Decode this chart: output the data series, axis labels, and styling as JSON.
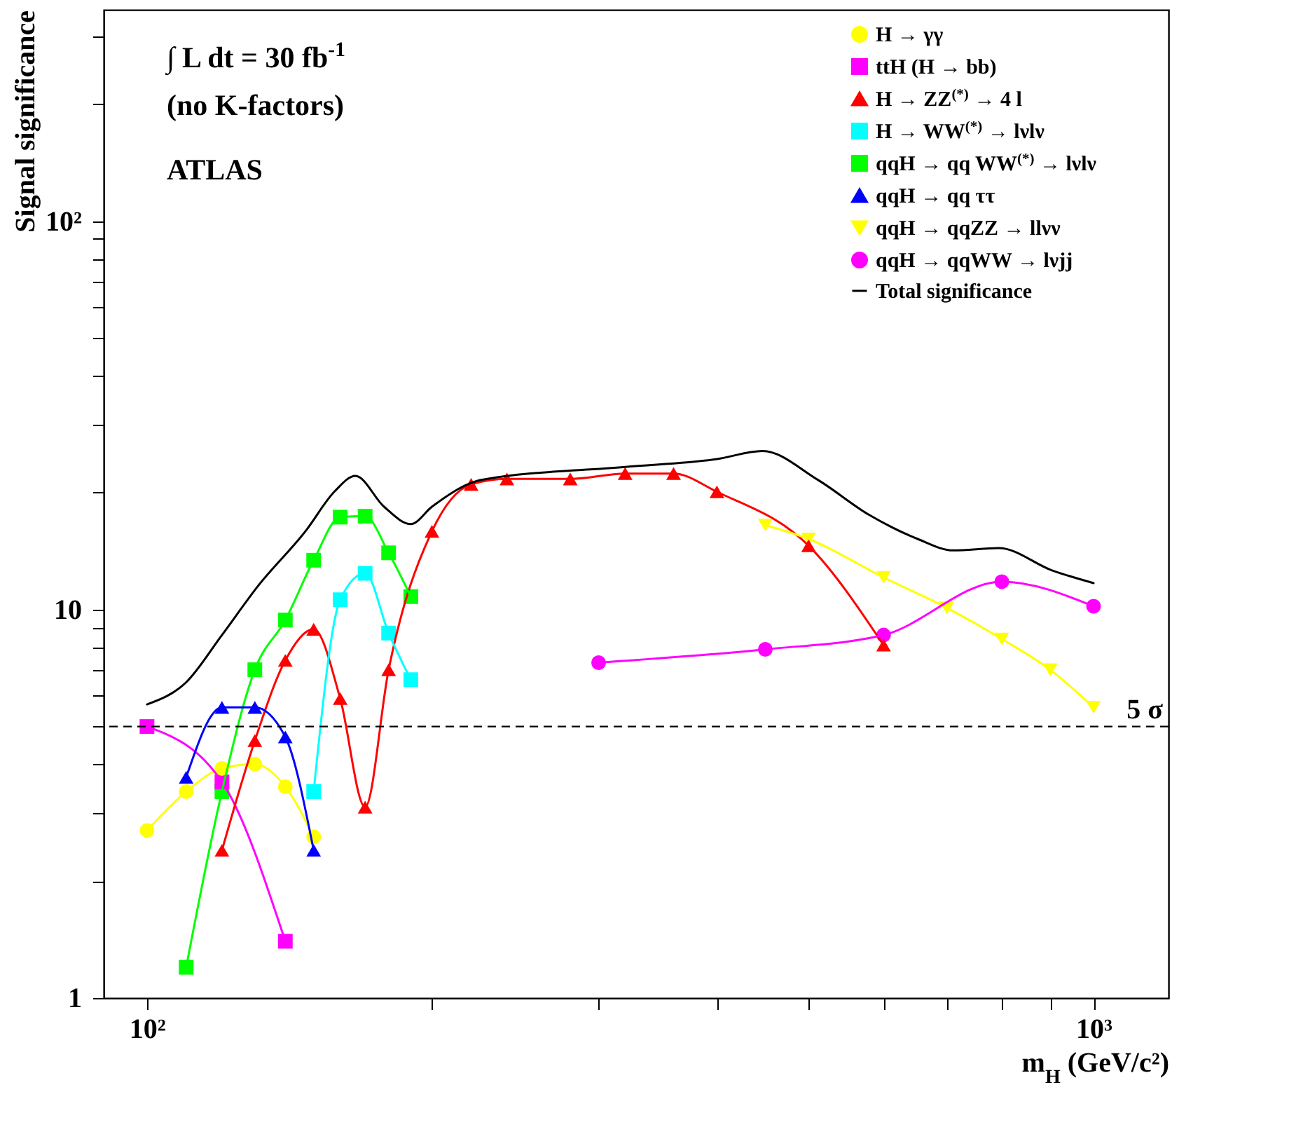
{
  "chart_data": {
    "type": "line",
    "xlabel": "m$_{H}$ (GeV/c²)",
    "ylabel": "Signal significance",
    "annotations": [
      "∫ L dt = 30 fb$^{-1}$",
      "(no K-factors)",
      "ATLAS"
    ],
    "log": "xy",
    "grid": false,
    "legend": "top right",
    "xlim": [
      90,
      1200
    ],
    "ylim": [
      1,
      350
    ],
    "xticks": [
      {
        "value": 100,
        "label": "10²"
      },
      {
        "value": 200,
        "label": null
      },
      {
        "value": 300,
        "label": null
      },
      {
        "value": 400,
        "label": null
      },
      {
        "value": 500,
        "label": null
      },
      {
        "value": 600,
        "label": null
      },
      {
        "value": 700,
        "label": null
      },
      {
        "value": 800,
        "label": null
      },
      {
        "value": 900,
        "label": null
      },
      {
        "value": 1000,
        "label": "10³"
      }
    ],
    "yticks": [
      1,
      {
        "value": 2,
        "label": null
      },
      {
        "value": 3,
        "label": null
      },
      {
        "value": 4,
        "label": null
      },
      {
        "value": 5,
        "label": null
      },
      {
        "value": 6,
        "label": null
      },
      {
        "value": 7,
        "label": null
      },
      {
        "value": 8,
        "label": null
      },
      {
        "value": 9,
        "label": null
      },
      10,
      {
        "value": 20,
        "label": null
      },
      {
        "value": 30,
        "label": null
      },
      {
        "value": 40,
        "label": null
      },
      {
        "value": 50,
        "label": null
      },
      {
        "value": 60,
        "label": null
      },
      {
        "value": 70,
        "label": null
      },
      {
        "value": 80,
        "label": null
      },
      {
        "value": 90,
        "label": null
      },
      {
        "value": 100,
        "label": "10²"
      },
      {
        "value": 200,
        "label": null
      },
      {
        "value": 300,
        "label": null
      }
    ],
    "ref_lines": [
      {
        "axis": "y",
        "value": 5,
        "label": "5 σ",
        "color": "#000000",
        "line_style": "dashed"
      }
    ],
    "series": [
      {
        "name": "H → γγ",
        "color": "#ffff00",
        "marker": "circle",
        "x": [
          100,
          110,
          120,
          130,
          140,
          150
        ],
        "values": [
          2.7,
          3.4,
          3.9,
          4.0,
          3.5,
          2.6
        ]
      },
      {
        "name": "ttH (H → bb)",
        "color": "#ff00ff",
        "marker": "square",
        "x": [
          100,
          120,
          140
        ],
        "values": [
          5.0,
          3.6,
          1.4
        ]
      },
      {
        "name": "H → ZZ$^{(*)}$ → 4 l",
        "color": "#ff0000",
        "marker": "triangle",
        "x": [
          120,
          130,
          140,
          150,
          160,
          170,
          180,
          200,
          220,
          240,
          280,
          320,
          360,
          400,
          500,
          600
        ],
        "values": [
          2.4,
          4.6,
          7.4,
          8.9,
          5.9,
          3.1,
          7.0,
          15.9,
          21,
          21.7,
          21.7,
          22.4,
          22.4,
          20.1,
          14.6,
          8.1
        ]
      },
      {
        "name": "H → WW$^{(*)}$ → lνlν",
        "color": "#00ffff",
        "marker": "square",
        "x": [
          150,
          160,
          170,
          180,
          190
        ],
        "values": [
          3.4,
          10.6,
          12.4,
          8.7,
          6.6
        ]
      },
      {
        "name": "qqH → qq WW$^{(*)}$ → lνlν",
        "color": "#00ff00",
        "marker": "square",
        "x": [
          110,
          120,
          130,
          140,
          150,
          160,
          170,
          180,
          190
        ],
        "values": [
          1.2,
          3.4,
          7.0,
          9.4,
          13.4,
          17.3,
          17.4,
          14.0,
          10.8
        ]
      },
      {
        "name": "qqH → qq ττ",
        "color": "#0000ff",
        "marker": "triangle",
        "x": [
          110,
          120,
          130,
          140,
          150
        ],
        "values": [
          3.7,
          5.6,
          5.6,
          4.7,
          2.4
        ]
      },
      {
        "name": "qqH → qqZZ → llνν",
        "color": "#ffff00",
        "marker": "triangle-down",
        "x": [
          450,
          500,
          600,
          700,
          800,
          900,
          1000
        ],
        "values": [
          16.5,
          15.2,
          12.1,
          10.1,
          8.4,
          7.0,
          5.6
        ]
      },
      {
        "name": "qqH → qqWW → lνjj",
        "color": "#ff00ff",
        "marker": "circle",
        "x": [
          300,
          450,
          600,
          800,
          1000
        ],
        "values": [
          7.3,
          7.9,
          8.6,
          11.8,
          10.2
        ]
      },
      {
        "name": "Total significance",
        "color": "#000000",
        "marker": "none",
        "line_style": "solid",
        "x": [
          100,
          110,
          120,
          131,
          147,
          158,
          166,
          178,
          190,
          200,
          219,
          226,
          320,
          400,
          447,
          511,
          580,
          652,
          711,
          794,
          905,
          1000
        ],
        "values": [
          5.7,
          6.5,
          8.6,
          11.5,
          15.9,
          20.2,
          22.1,
          18.4,
          16.6,
          18.4,
          21.1,
          21.6,
          23.3,
          24.4,
          25.6,
          21.6,
          17.5,
          15.2,
          14.2,
          14.4,
          12.6,
          11.7
        ]
      }
    ]
  }
}
